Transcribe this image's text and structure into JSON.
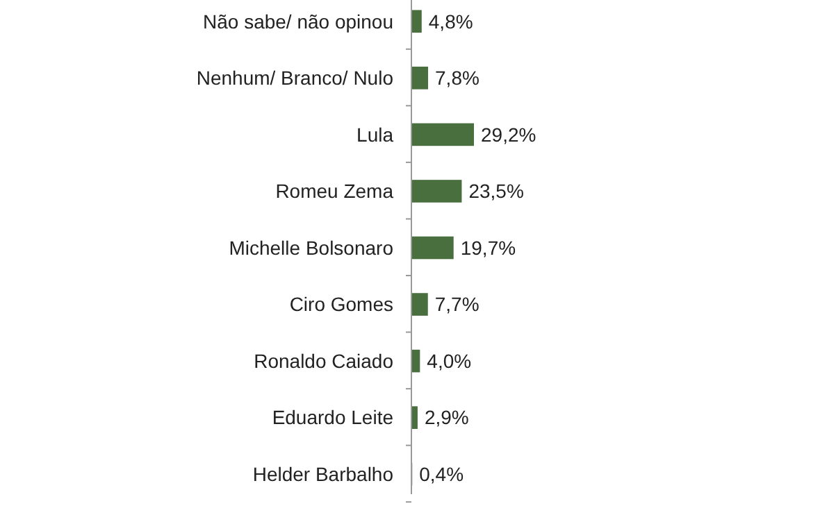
{
  "chart_data": {
    "type": "bar",
    "orientation": "horizontal",
    "categories": [
      "Não sabe/ não opinou",
      "Nenhum/ Branco/ Nulo",
      "Lula",
      "Romeu Zema",
      "Michelle Bolsonaro",
      "Ciro Gomes",
      "Ronaldo Caiado",
      "Eduardo Leite",
      "Helder Barbalho"
    ],
    "values": [
      4.8,
      7.8,
      29.2,
      23.5,
      19.7,
      7.7,
      4.0,
      2.9,
      0.4
    ],
    "value_labels": [
      "4,8%",
      "7,8%",
      "29,2%",
      "23,5%",
      "19,7%",
      "7,7%",
      "4,0%",
      "2,9%",
      "0,4%"
    ],
    "color": "#4a6f3f"
  }
}
